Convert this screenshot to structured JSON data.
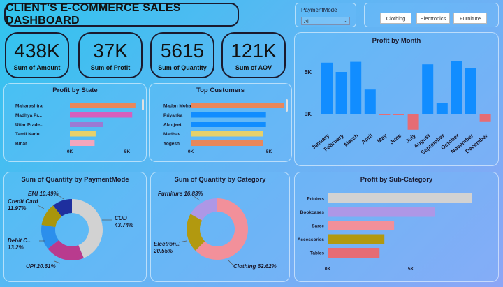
{
  "title": "CLIENT'S E-COMMERCE SALES DASHBOARD",
  "payment_slicer": {
    "label": "PaymentMode",
    "value": "All"
  },
  "category_buttons": [
    "Clothing",
    "Electronics",
    "Furniture"
  ],
  "kpis": [
    {
      "value": "438K",
      "label": "Sum of Amount"
    },
    {
      "value": "37K",
      "label": "Sum of Profit"
    },
    {
      "value": "5615",
      "label": "Sum of Quantity"
    },
    {
      "value": "121K",
      "label": "Sum of AOV"
    }
  ],
  "colors": {
    "bar_blue": "#118dff",
    "negative": "#e66c74"
  },
  "chart_data": [
    {
      "id": "state",
      "type": "bar",
      "orientation": "horizontal",
      "title": "Profit by State",
      "categories": [
        "Maharashtra",
        "Madhya Pr...",
        "Uttar Prade...",
        "Tamil Nadu",
        "Bihar"
      ],
      "values": [
        6100,
        5800,
        3100,
        2400,
        2300
      ],
      "colors": [
        "#e8875b",
        "#d65fbd",
        "#9b7ad3",
        "#e7d16a",
        "#f4a6bd"
      ],
      "xticks": [
        "0K",
        "5K"
      ],
      "xlim": [
        0,
        6500
      ]
    },
    {
      "id": "customers",
      "type": "bar",
      "orientation": "horizontal",
      "title": "Top Customers",
      "categories": [
        "Madan Mohan",
        "Priyanka",
        "Abhijeet",
        "Madhav",
        "Yogesh"
      ],
      "values": [
        6200,
        5000,
        5000,
        4800,
        4800
      ],
      "colors": [
        "#e8875b",
        "#118dff",
        "#118dff",
        "#e7d16a",
        "#e8875b"
      ],
      "xticks": [
        "0K",
        "5K"
      ],
      "xlim": [
        0,
        6500
      ]
    },
    {
      "id": "month",
      "type": "bar",
      "title": "Profit by Month",
      "categories": [
        "January",
        "February",
        "March",
        "April",
        "May",
        "June",
        "July",
        "August",
        "September",
        "October",
        "November",
        "December"
      ],
      "values": [
        6100,
        5000,
        6200,
        2900,
        -100,
        -100,
        -1900,
        5900,
        1300,
        6300,
        5500,
        -900
      ],
      "yticks": [
        "0K",
        "5K"
      ],
      "ylim": [
        -3000,
        7500
      ]
    },
    {
      "id": "payment",
      "type": "pie",
      "donut": true,
      "title": "Sum of Quantity by PaymentMode",
      "slices": [
        {
          "label": "COD",
          "pct": "43.74%",
          "value": 43.74,
          "color": "#d2d2d2"
        },
        {
          "label": "UPI",
          "pct": "20.61%",
          "value": 20.61,
          "color": "#b93b8e"
        },
        {
          "label": "Debit C...",
          "pct": "13.2%",
          "value": 13.2,
          "color": "#2b8fec"
        },
        {
          "label": "Credit Card",
          "pct": "11.97%",
          "value": 11.97,
          "color": "#a9960c"
        },
        {
          "label": "EMI",
          "pct": "10.49%",
          "value": 10.49,
          "color": "#1e2f9e"
        }
      ]
    },
    {
      "id": "category",
      "type": "pie",
      "donut": true,
      "title": "Sum of Quantity by Category",
      "slices": [
        {
          "label": "Clothing",
          "pct": "62.62%",
          "value": 62.62,
          "color": "#f2909a"
        },
        {
          "label": "Electron...",
          "pct": "20.55%",
          "value": 20.55,
          "color": "#b2990f"
        },
        {
          "label": "Furniture",
          "pct": "16.83%",
          "value": 16.83,
          "color": "#ae97e6"
        }
      ]
    },
    {
      "id": "subcat",
      "type": "bar",
      "orientation": "horizontal",
      "title": "Profit by Sub-Category",
      "categories": [
        "Printers",
        "Bookcases",
        "Saree",
        "Accessories",
        "Tables"
      ],
      "values": [
        8900,
        6600,
        4100,
        3500,
        3200
      ],
      "colors": [
        "#d2d2d2",
        "#ae97e6",
        "#f2909a",
        "#b2990f",
        "#e66c74"
      ],
      "xticks": [
        "0K",
        "5K",
        "..."
      ],
      "xlim": [
        0,
        10000
      ]
    }
  ]
}
